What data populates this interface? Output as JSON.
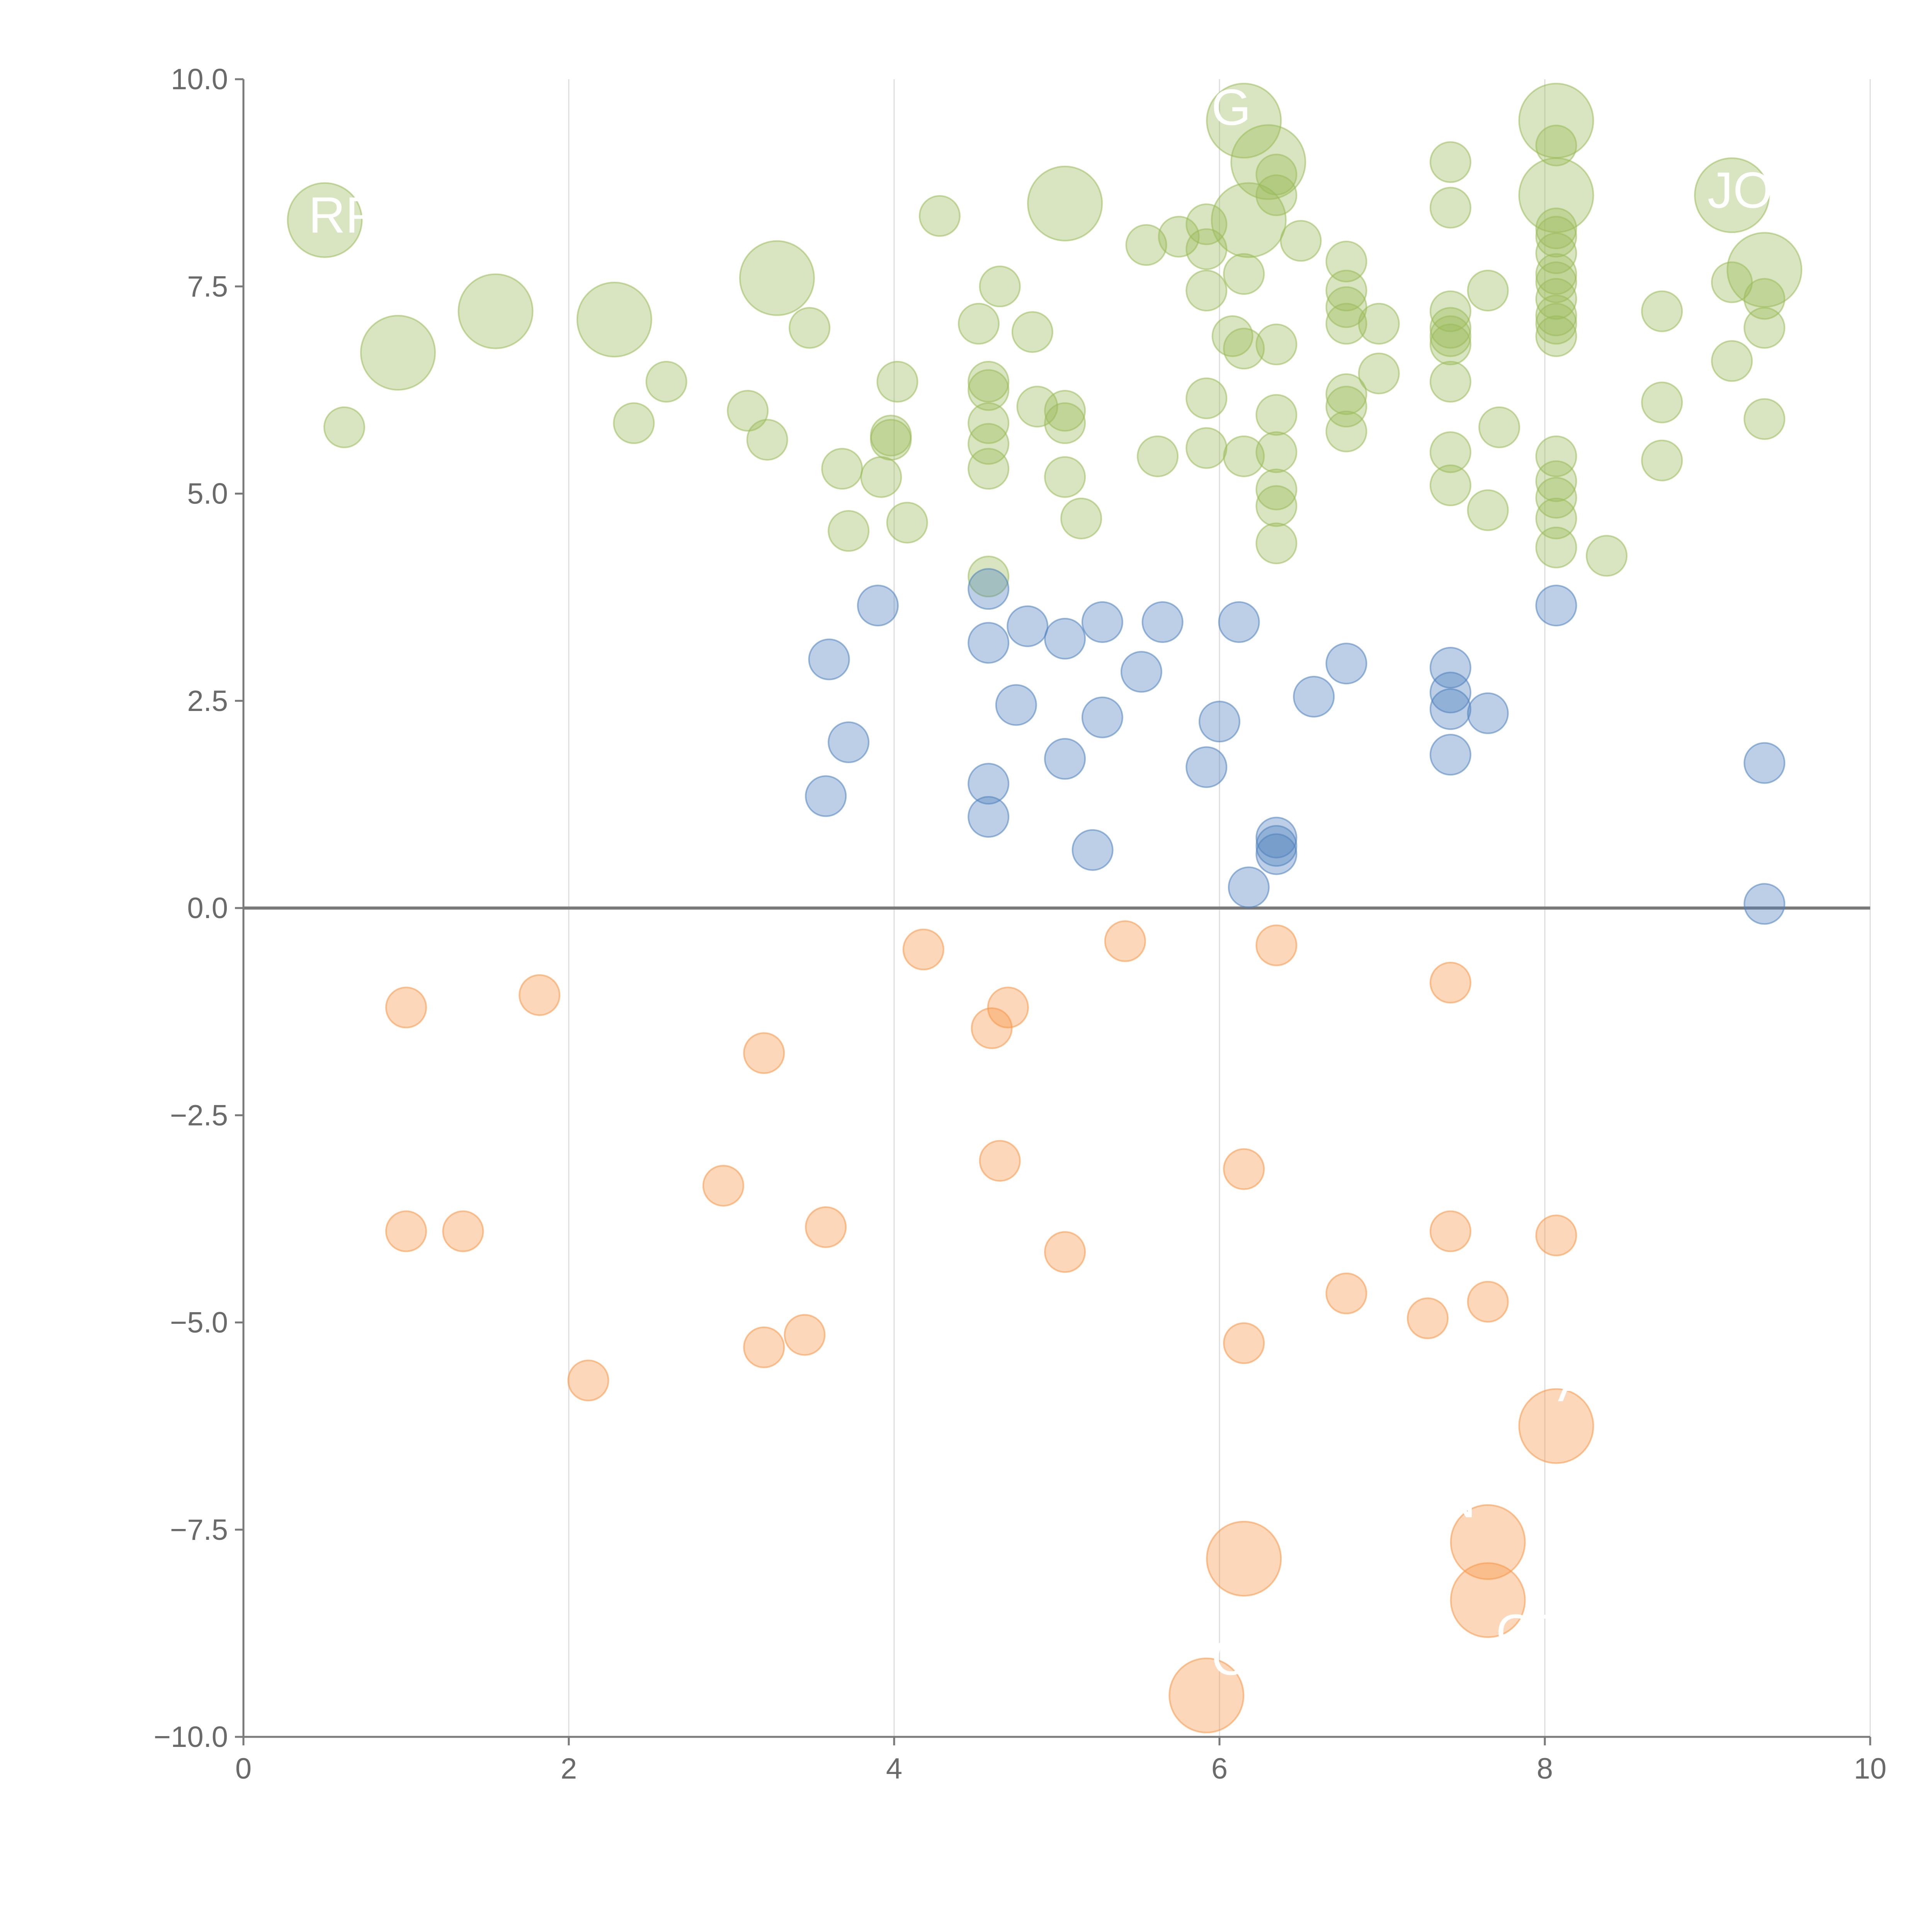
{
  "chart_data": {
    "type": "scatter",
    "title": "",
    "xlabel": "",
    "ylabel": "",
    "xlim": [
      0,
      10
    ],
    "ylim": [
      -10,
      10
    ],
    "x_ticks": [
      0,
      2,
      4,
      6,
      8,
      10
    ],
    "x_tick_labels": [
      "0",
      "2",
      "4",
      "6",
      "8",
      "10"
    ],
    "y_ticks": [
      10,
      7.5,
      5,
      2.5,
      0,
      -2.5,
      -5,
      -7.5,
      -10
    ],
    "y_tick_labels": [
      "10.0",
      "7.5",
      "5.0",
      "2.5",
      "0.0",
      "−2.5",
      "−5.0",
      "−7.5",
      "−10.0"
    ],
    "grid": "vertical",
    "zero_line": true,
    "series": [
      {
        "name": "green",
        "color": "#9bbb59",
        "points": [
          {
            "x": 0.5,
            "y": 8.3,
            "size": "large"
          },
          {
            "x": 0.95,
            "y": 6.7,
            "size": "large"
          },
          {
            "x": 1.55,
            "y": 7.2,
            "size": "large"
          },
          {
            "x": 2.28,
            "y": 7.1,
            "size": "large"
          },
          {
            "x": 3.28,
            "y": 7.6,
            "size": "large"
          },
          {
            "x": 5.05,
            "y": 8.5,
            "size": "large"
          },
          {
            "x": 6.15,
            "y": 9.5,
            "size": "large"
          },
          {
            "x": 6.3,
            "y": 9.0,
            "size": "large"
          },
          {
            "x": 6.18,
            "y": 8.3,
            "size": "large"
          },
          {
            "x": 8.07,
            "y": 9.5,
            "size": "large"
          },
          {
            "x": 8.07,
            "y": 8.6,
            "size": "large"
          },
          {
            "x": 9.15,
            "y": 8.6,
            "size": "large"
          },
          {
            "x": 9.35,
            "y": 7.7,
            "size": "large"
          },
          {
            "x": 0.62,
            "y": 5.8
          },
          {
            "x": 2.4,
            "y": 5.85
          },
          {
            "x": 2.6,
            "y": 6.35
          },
          {
            "x": 3.1,
            "y": 6.0
          },
          {
            "x": 3.22,
            "y": 5.65
          },
          {
            "x": 3.48,
            "y": 7.0
          },
          {
            "x": 3.68,
            "y": 5.3
          },
          {
            "x": 3.72,
            "y": 4.55
          },
          {
            "x": 3.92,
            "y": 5.2
          },
          {
            "x": 3.98,
            "y": 5.65
          },
          {
            "x": 3.98,
            "y": 5.7
          },
          {
            "x": 4.02,
            "y": 6.35
          },
          {
            "x": 4.08,
            "y": 4.65
          },
          {
            "x": 4.28,
            "y": 8.35
          },
          {
            "x": 4.52,
            "y": 7.05
          },
          {
            "x": 4.58,
            "y": 6.35
          },
          {
            "x": 4.58,
            "y": 6.25
          },
          {
            "x": 4.58,
            "y": 5.85
          },
          {
            "x": 4.58,
            "y": 5.6
          },
          {
            "x": 4.58,
            "y": 5.3
          },
          {
            "x": 4.58,
            "y": 4.0
          },
          {
            "x": 4.65,
            "y": 7.5
          },
          {
            "x": 4.85,
            "y": 6.95
          },
          {
            "x": 4.88,
            "y": 6.05
          },
          {
            "x": 5.05,
            "y": 6.0
          },
          {
            "x": 5.05,
            "y": 5.85
          },
          {
            "x": 5.05,
            "y": 5.2
          },
          {
            "x": 5.15,
            "y": 4.7
          },
          {
            "x": 5.55,
            "y": 8.0
          },
          {
            "x": 5.62,
            "y": 5.45
          },
          {
            "x": 5.75,
            "y": 8.1
          },
          {
            "x": 5.92,
            "y": 8.25
          },
          {
            "x": 5.92,
            "y": 7.95
          },
          {
            "x": 5.92,
            "y": 7.45
          },
          {
            "x": 5.92,
            "y": 6.15
          },
          {
            "x": 5.92,
            "y": 5.55
          },
          {
            "x": 6.08,
            "y": 6.9
          },
          {
            "x": 6.15,
            "y": 7.65
          },
          {
            "x": 6.15,
            "y": 6.75
          },
          {
            "x": 6.15,
            "y": 5.45
          },
          {
            "x": 6.35,
            "y": 8.85
          },
          {
            "x": 6.35,
            "y": 8.6
          },
          {
            "x": 6.35,
            "y": 6.8
          },
          {
            "x": 6.35,
            "y": 5.95
          },
          {
            "x": 6.35,
            "y": 5.5
          },
          {
            "x": 6.35,
            "y": 5.05
          },
          {
            "x": 6.35,
            "y": 4.85
          },
          {
            "x": 6.35,
            "y": 4.4
          },
          {
            "x": 6.5,
            "y": 8.05
          },
          {
            "x": 6.78,
            "y": 7.8
          },
          {
            "x": 6.78,
            "y": 7.45
          },
          {
            "x": 6.78,
            "y": 7.25
          },
          {
            "x": 6.78,
            "y": 7.05
          },
          {
            "x": 6.78,
            "y": 6.2
          },
          {
            "x": 6.78,
            "y": 6.05
          },
          {
            "x": 6.78,
            "y": 5.75
          },
          {
            "x": 6.98,
            "y": 7.05
          },
          {
            "x": 6.98,
            "y": 6.45
          },
          {
            "x": 7.42,
            "y": 9.0
          },
          {
            "x": 7.42,
            "y": 8.45
          },
          {
            "x": 7.42,
            "y": 7.2
          },
          {
            "x": 7.42,
            "y": 7.0
          },
          {
            "x": 7.42,
            "y": 6.9
          },
          {
            "x": 7.42,
            "y": 6.8
          },
          {
            "x": 7.42,
            "y": 6.35
          },
          {
            "x": 7.42,
            "y": 5.5
          },
          {
            "x": 7.42,
            "y": 5.1
          },
          {
            "x": 7.65,
            "y": 7.45
          },
          {
            "x": 7.65,
            "y": 4.8
          },
          {
            "x": 7.72,
            "y": 5.8
          },
          {
            "x": 8.07,
            "y": 9.2
          },
          {
            "x": 8.07,
            "y": 8.2
          },
          {
            "x": 8.07,
            "y": 8.1
          },
          {
            "x": 8.07,
            "y": 7.9
          },
          {
            "x": 8.07,
            "y": 7.65
          },
          {
            "x": 8.07,
            "y": 7.55
          },
          {
            "x": 8.07,
            "y": 7.35
          },
          {
            "x": 8.07,
            "y": 7.15
          },
          {
            "x": 8.07,
            "y": 7.05
          },
          {
            "x": 8.07,
            "y": 6.9
          },
          {
            "x": 8.07,
            "y": 5.45
          },
          {
            "x": 8.07,
            "y": 5.15
          },
          {
            "x": 8.07,
            "y": 4.95
          },
          {
            "x": 8.07,
            "y": 4.7
          },
          {
            "x": 8.07,
            "y": 4.35
          },
          {
            "x": 8.38,
            "y": 4.25
          },
          {
            "x": 8.72,
            "y": 7.2
          },
          {
            "x": 8.72,
            "y": 6.1
          },
          {
            "x": 8.72,
            "y": 5.4
          },
          {
            "x": 9.15,
            "y": 7.55
          },
          {
            "x": 9.15,
            "y": 6.6
          },
          {
            "x": 9.35,
            "y": 7.35
          },
          {
            "x": 9.35,
            "y": 7.0
          },
          {
            "x": 9.35,
            "y": 5.9
          }
        ]
      },
      {
        "name": "blue",
        "color": "#4f81bd",
        "points": [
          {
            "x": 3.58,
            "y": 1.35
          },
          {
            "x": 3.6,
            "y": 3.0
          },
          {
            "x": 3.72,
            "y": 2.0
          },
          {
            "x": 3.9,
            "y": 3.65
          },
          {
            "x": 4.58,
            "y": 3.85
          },
          {
            "x": 4.58,
            "y": 3.2
          },
          {
            "x": 4.58,
            "y": 1.5
          },
          {
            "x": 4.58,
            "y": 1.1
          },
          {
            "x": 4.75,
            "y": 2.45
          },
          {
            "x": 4.82,
            "y": 3.4
          },
          {
            "x": 5.05,
            "y": 3.25
          },
          {
            "x": 5.05,
            "y": 1.8
          },
          {
            "x": 5.22,
            "y": 0.7
          },
          {
            "x": 5.28,
            "y": 3.45
          },
          {
            "x": 5.28,
            "y": 2.3
          },
          {
            "x": 5.52,
            "y": 2.85
          },
          {
            "x": 5.65,
            "y": 3.45
          },
          {
            "x": 5.92,
            "y": 1.7
          },
          {
            "x": 6.0,
            "y": 2.25
          },
          {
            "x": 6.12,
            "y": 3.45
          },
          {
            "x": 6.18,
            "y": 0.25
          },
          {
            "x": 6.35,
            "y": 0.85
          },
          {
            "x": 6.35,
            "y": 0.75
          },
          {
            "x": 6.35,
            "y": 0.65
          },
          {
            "x": 6.58,
            "y": 2.55
          },
          {
            "x": 6.78,
            "y": 2.95
          },
          {
            "x": 7.42,
            "y": 2.9
          },
          {
            "x": 7.42,
            "y": 2.6
          },
          {
            "x": 7.42,
            "y": 2.4
          },
          {
            "x": 7.42,
            "y": 1.85
          },
          {
            "x": 7.65,
            "y": 2.35
          },
          {
            "x": 8.07,
            "y": 3.65
          },
          {
            "x": 9.35,
            "y": 1.75
          },
          {
            "x": 9.35,
            "y": 0.05
          }
        ]
      },
      {
        "name": "orange",
        "color": "#f79646",
        "points": [
          {
            "x": 1.0,
            "y": -1.2
          },
          {
            "x": 1.0,
            "y": -3.9
          },
          {
            "x": 1.35,
            "y": -3.9
          },
          {
            "x": 1.82,
            "y": -1.05
          },
          {
            "x": 2.12,
            "y": -5.7
          },
          {
            "x": 2.95,
            "y": -3.35
          },
          {
            "x": 3.2,
            "y": -1.75
          },
          {
            "x": 3.2,
            "y": -5.3
          },
          {
            "x": 3.45,
            "y": -5.15
          },
          {
            "x": 3.58,
            "y": -3.85
          },
          {
            "x": 4.18,
            "y": -0.5
          },
          {
            "x": 4.6,
            "y": -1.45
          },
          {
            "x": 4.65,
            "y": -3.05
          },
          {
            "x": 4.7,
            "y": -1.2
          },
          {
            "x": 5.05,
            "y": -4.15
          },
          {
            "x": 5.42,
            "y": -0.4
          },
          {
            "x": 6.15,
            "y": -3.15
          },
          {
            "x": 6.15,
            "y": -5.25
          },
          {
            "x": 6.35,
            "y": -0.45
          },
          {
            "x": 6.78,
            "y": -4.65
          },
          {
            "x": 7.28,
            "y": -4.95
          },
          {
            "x": 7.42,
            "y": -0.9
          },
          {
            "x": 7.42,
            "y": -3.9
          },
          {
            "x": 7.65,
            "y": -4.75
          },
          {
            "x": 8.07,
            "y": -3.95
          },
          {
            "x": 8.07,
            "y": -6.25,
            "size": "large"
          },
          {
            "x": 6.15,
            "y": -7.85,
            "size": "large"
          },
          {
            "x": 7.65,
            "y": -7.65,
            "size": "large"
          },
          {
            "x": 7.65,
            "y": -8.35,
            "size": "large"
          },
          {
            "x": 5.92,
            "y": -9.5,
            "size": "large"
          }
        ]
      }
    ],
    "annotations": [
      {
        "text": "RP",
        "x": 0.4,
        "y": 8.15
      },
      {
        "text": "G",
        "x": 5.95,
        "y": 9.45
      },
      {
        "text": "JOE",
        "x": 9.0,
        "y": 8.45
      },
      {
        "text": "A",
        "x": 8.08,
        "y": -5.95
      },
      {
        "text": "N",
        "x": 7.35,
        "y": -7.35
      },
      {
        "text": "OT",
        "x": 7.7,
        "y": -8.95
      },
      {
        "text": "C",
        "x": 5.95,
        "y": -9.25
      }
    ]
  }
}
